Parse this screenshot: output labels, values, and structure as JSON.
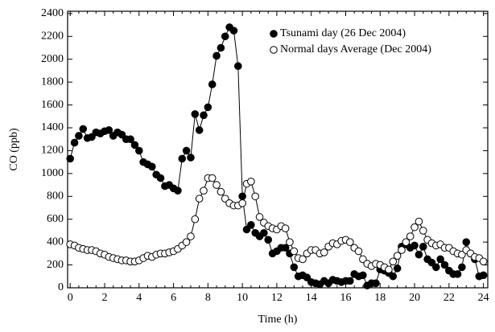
{
  "chart_data": {
    "type": "line",
    "x_label": "Time (h)",
    "y_label": "CO (ppb)",
    "x": [
      0,
      0.25,
      0.5,
      0.75,
      1,
      1.25,
      1.5,
      1.75,
      2,
      2.25,
      2.5,
      2.75,
      3,
      3.25,
      3.5,
      3.75,
      4,
      4.25,
      4.5,
      4.75,
      5,
      5.25,
      5.5,
      5.75,
      6,
      6.25,
      6.5,
      6.75,
      7,
      7.25,
      7.5,
      7.75,
      8,
      8.25,
      8.5,
      8.75,
      9,
      9.25,
      9.5,
      9.75,
      10,
      10.25,
      10.5,
      10.75,
      11,
      11.25,
      11.5,
      11.75,
      12,
      12.25,
      12.5,
      12.75,
      13,
      13.25,
      13.5,
      13.75,
      14,
      14.25,
      14.5,
      14.75,
      15,
      15.25,
      15.5,
      15.75,
      16,
      16.25,
      16.5,
      16.75,
      17,
      17.25,
      17.5,
      17.75,
      18,
      18.25,
      18.5,
      18.75,
      19,
      19.25,
      19.5,
      19.75,
      20,
      20.25,
      20.5,
      20.75,
      21,
      21.25,
      21.5,
      21.75,
      22,
      22.25,
      22.5,
      22.75,
      23,
      23.25,
      23.5,
      23.75,
      24
    ],
    "series": [
      {
        "name": "Tsunami day (26 Dec 2004)",
        "color": "#000000",
        "marker": "filled",
        "values": [
          1130,
          1270,
          1330,
          1390,
          1310,
          1320,
          1360,
          1350,
          1370,
          1380,
          1330,
          1360,
          1340,
          1300,
          1300,
          1250,
          1200,
          1100,
          1080,
          1060,
          990,
          960,
          890,
          900,
          870,
          850,
          1130,
          1200,
          1140,
          1520,
          1380,
          1510,
          1580,
          1780,
          2030,
          2100,
          2200,
          2280,
          2250,
          1940,
          800,
          510,
          550,
          480,
          450,
          480,
          420,
          300,
          320,
          350,
          350,
          300,
          180,
          100,
          110,
          90,
          50,
          40,
          30,
          60,
          40,
          70,
          60,
          50,
          60,
          60,
          120,
          100,
          110,
          20,
          40,
          40,
          160,
          150,
          130,
          100,
          170,
          360,
          380,
          350,
          370,
          290,
          360,
          250,
          220,
          180,
          250,
          200,
          150,
          120,
          120,
          180,
          400,
          300,
          250,
          100,
          110
        ]
      },
      {
        "name": "Normal days Average (Dec 2004)",
        "color": "#000000",
        "marker": "open",
        "values": [
          380,
          370,
          350,
          340,
          330,
          330,
          320,
          300,
          290,
          270,
          260,
          250,
          240,
          240,
          230,
          230,
          240,
          260,
          280,
          270,
          290,
          300,
          300,
          310,
          320,
          340,
          370,
          400,
          450,
          600,
          780,
          850,
          960,
          960,
          900,
          840,
          780,
          740,
          720,
          720,
          740,
          910,
          930,
          800,
          620,
          570,
          540,
          520,
          510,
          540,
          520,
          400,
          320,
          260,
          250,
          300,
          330,
          330,
          300,
          310,
          360,
          390,
          380,
          410,
          420,
          400,
          350,
          320,
          250,
          210,
          190,
          210,
          200,
          180,
          160,
          230,
          280,
          330,
          400,
          450,
          530,
          580,
          500,
          420,
          390,
          370,
          380,
          350,
          350,
          320,
          300,
          290,
          330,
          300,
          270,
          260,
          230
        ]
      }
    ],
    "xlim": [
      -0.15,
      24.25
    ],
    "ylim": [
      0,
      2420
    ],
    "xticks": [
      0,
      2,
      4,
      6,
      8,
      10,
      12,
      14,
      16,
      18,
      20,
      22,
      24
    ],
    "yticks": [
      0,
      200,
      400,
      600,
      800,
      1000,
      1200,
      1400,
      1600,
      1800,
      2000,
      2200,
      2400
    ],
    "legend": "upper-right"
  }
}
